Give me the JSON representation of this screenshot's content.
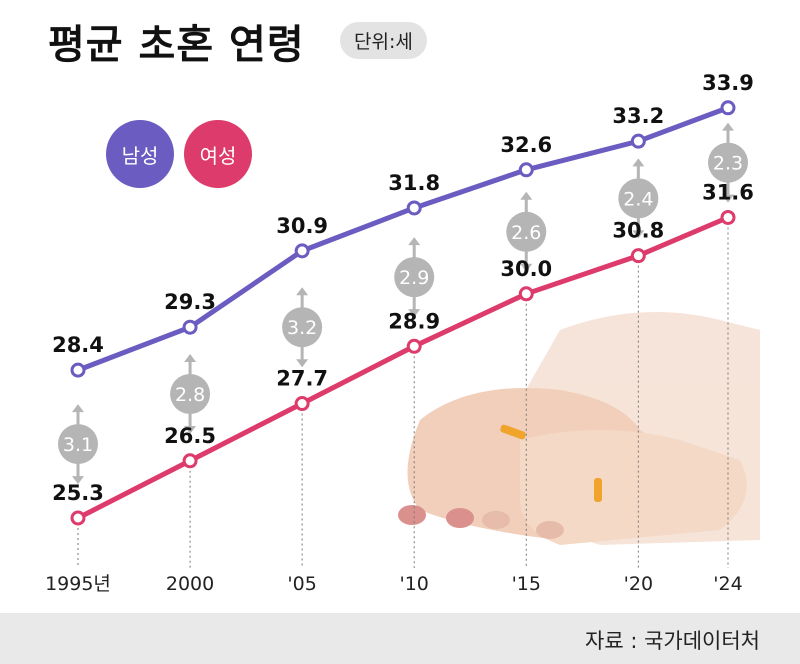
{
  "chart_data": {
    "type": "line",
    "title": "평균 초혼 연령",
    "unit": "단위:세",
    "categories": [
      "1995년",
      "2000",
      "'05",
      "'10",
      "'15",
      "'20",
      "'24"
    ],
    "years": [
      1995,
      2000,
      2005,
      2010,
      2015,
      2020,
      2024
    ],
    "series": [
      {
        "name": "남성",
        "color": "#6a5cc0",
        "values": [
          28.4,
          29.3,
          30.9,
          31.8,
          32.6,
          33.2,
          33.9
        ]
      },
      {
        "name": "여성",
        "color": "#dd3b6c",
        "values": [
          25.3,
          26.5,
          27.7,
          28.9,
          30.0,
          30.8,
          31.6
        ]
      }
    ],
    "gaps": [
      "3.1",
      "2.8",
      "3.2",
      "2.9",
      "2.6",
      "2.4",
      "2.3"
    ],
    "gap_color": "#b5b5b5",
    "legend": "top-left",
    "grid": false,
    "source": "자료 : 국가데이터처"
  }
}
